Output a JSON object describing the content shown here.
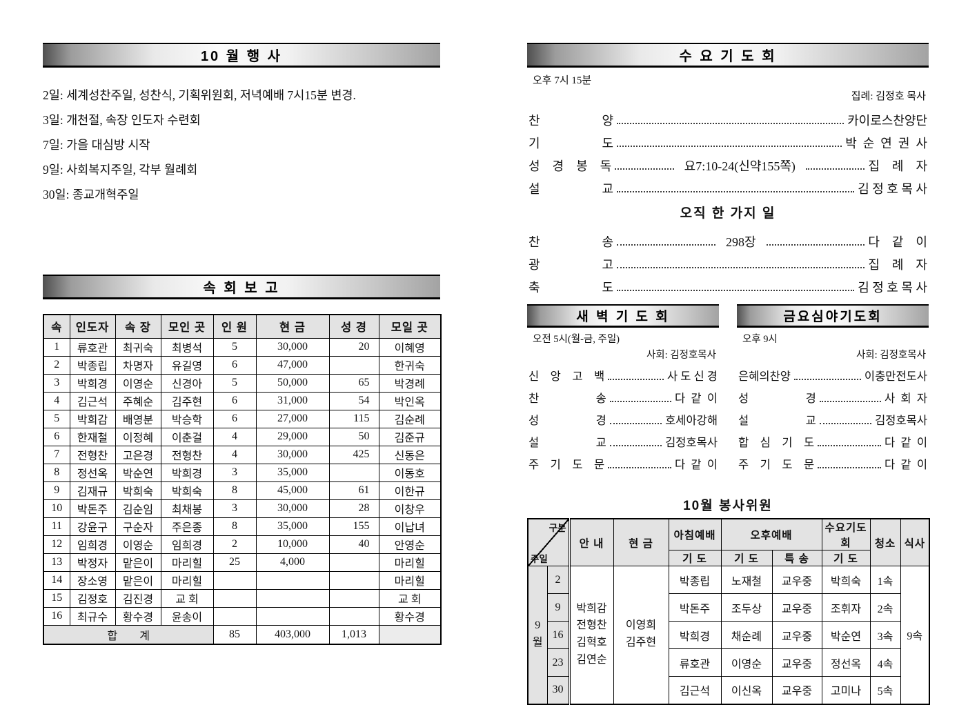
{
  "left": {
    "events": {
      "title": "10 월 행 사",
      "items": [
        "2일: 세계성찬주일, 성찬식, 기획위원회, 저녁예배 7시15분 변경.",
        "3일: 개천절, 속장 인도자 수련회",
        "7일: 가을 대심방 시작",
        "9일: 사회복지주일, 각부 월례회",
        "30일: 종교개혁주일"
      ]
    },
    "report": {
      "title": "속 회 보 고",
      "columns": [
        "속",
        "인도자",
        "속 장",
        "모인 곳",
        "인 원",
        "현 금",
        "성 경",
        "모일 곳"
      ],
      "rows": [
        [
          "1",
          "류호관",
          "최귀숙",
          "최병석",
          "5",
          "30,000",
          "20",
          "이혜영"
        ],
        [
          "2",
          "박종립",
          "차명자",
          "유길영",
          "6",
          "47,000",
          "",
          "한귀숙"
        ],
        [
          "3",
          "박희경",
          "이영순",
          "신경아",
          "5",
          "50,000",
          "65",
          "박경례"
        ],
        [
          "4",
          "김근석",
          "주혜순",
          "김주현",
          "6",
          "31,000",
          "54",
          "박인옥"
        ],
        [
          "5",
          "박희감",
          "배영분",
          "박승학",
          "6",
          "27,000",
          "115",
          "김순례"
        ],
        [
          "6",
          "한재철",
          "이정혜",
          "이춘걸",
          "4",
          "29,000",
          "50",
          "김준규"
        ],
        [
          "7",
          "전형찬",
          "고은경",
          "전형찬",
          "4",
          "30,000",
          "425",
          "신동은"
        ],
        [
          "8",
          "정선옥",
          "박순연",
          "박희경",
          "3",
          "35,000",
          "",
          "이동호"
        ],
        [
          "9",
          "김재규",
          "박희숙",
          "박희숙",
          "8",
          "45,000",
          "61",
          "이한규"
        ],
        [
          "10",
          "박돈주",
          "김순임",
          "최채봉",
          "3",
          "30,000",
          "28",
          "이창우"
        ],
        [
          "11",
          "강윤구",
          "구순자",
          "주은종",
          "8",
          "35,000",
          "155",
          "이납녀"
        ],
        [
          "12",
          "임희경",
          "이영순",
          "임희경",
          "2",
          "10,000",
          "40",
          "안영순"
        ],
        [
          "13",
          "박정자",
          "맡은이",
          "마리힐",
          "25",
          "4,000",
          "",
          "마리힐"
        ],
        [
          "14",
          "장소영",
          "맡은이",
          "마리힐",
          "",
          "",
          "",
          "마리힐"
        ],
        [
          "15",
          "김정호",
          "김진경",
          "교 회",
          "",
          "",
          "",
          "교 회"
        ],
        [
          "16",
          "최규수",
          "황수경",
          "윤송이",
          "",
          "",
          "",
          "황수경"
        ]
      ],
      "total": {
        "label": "합　　계",
        "people": "85",
        "offering": "403,000",
        "bible": "1,013",
        "place": ""
      }
    }
  },
  "right": {
    "wednesday": {
      "title": "수 요 기 도 회",
      "time": "오후 7시 15분",
      "leader": "집례: 김정호 목사",
      "rows": [
        {
          "label": "찬　　　　　양",
          "value": "카이로스찬양단"
        },
        {
          "label": "기　　　　　도",
          "value": "박  순  연  권  사"
        },
        {
          "label": "성　경　봉　독",
          "center": "요7:10-24(신약155쪽)",
          "value": "집　례　자"
        },
        {
          "label": "설　　　　　교",
          "value": "김 정 호 목 사"
        }
      ],
      "sermon_title": "오직 한 가지 일",
      "rows2": [
        {
          "label": "찬　　　　　송",
          "center": "298장",
          "value": "다　같　이"
        },
        {
          "label": "광　　　　　고",
          "value": "집　례　자"
        },
        {
          "label": "축　　　　　도",
          "value": "김 정 호 목 사"
        }
      ]
    },
    "dawn": {
      "title": "새 벽 기 도 회",
      "time": "오전 5시(월-금, 주일)",
      "leader": "사회: 김정호목사",
      "rows": [
        {
          "label": "신　앙　고　백",
          "value": "사 도 신 경"
        },
        {
          "label": "찬　　　　　송",
          "value": "다  같  이"
        },
        {
          "label": "성　　　　　경",
          "value": "호세아강해"
        },
        {
          "label": "설　　　　　교",
          "value": "김정호목사"
        },
        {
          "label": "주　기　도　문",
          "value": "다  같  이"
        }
      ]
    },
    "friday": {
      "title": "금요심야기도회",
      "time": "오후 9시",
      "leader": "사회: 김정호목사",
      "rows": [
        {
          "label": "은혜의찬양",
          "value": "이충만전도사"
        },
        {
          "label": "성　　　　　경",
          "value": "사  회  자"
        },
        {
          "label": "설　　　　　교",
          "value": "김정호목사"
        },
        {
          "label": "합　심　기　도",
          "value": "다  같  이"
        },
        {
          "label": "주　기　도　문",
          "value": "다  같  이"
        }
      ]
    },
    "committee": {
      "title": "10월 봉사위원",
      "header": {
        "corner_top": "구분",
        "corner_bottom": "주일",
        "usher": "안 내",
        "offering": "현 금",
        "morning": "아침예배",
        "afternoon": "오후예배",
        "wednesday": "수요기도회",
        "prayer_morning": "기 도",
        "prayer_afternoon": "기 도",
        "special_song": "특 송",
        "prayer_wednesday": "기 도",
        "cleaning": "청소",
        "meal": "식사"
      },
      "month": "9\n월",
      "usher_names": "박희감\n전형찬\n김혁호\n김연순",
      "offering_names": "이영희\n김주현",
      "meal_value": "9속",
      "rows": [
        {
          "date": "2",
          "cells": [
            "박종립",
            "노재철",
            "교우중",
            "박희숙",
            "1속"
          ]
        },
        {
          "date": "9",
          "cells": [
            "박돈주",
            "조두상",
            "교우중",
            "조휘자",
            "2속"
          ]
        },
        {
          "date": "16",
          "cells": [
            "박희경",
            "채순례",
            "교우중",
            "박순연",
            "3속"
          ]
        },
        {
          "date": "23",
          "cells": [
            "류호관",
            "이영순",
            "교우중",
            "정선옥",
            "4속"
          ]
        },
        {
          "date": "30",
          "cells": [
            "김근석",
            "이신옥",
            "교우중",
            "고미나",
            "5속"
          ]
        }
      ]
    }
  }
}
